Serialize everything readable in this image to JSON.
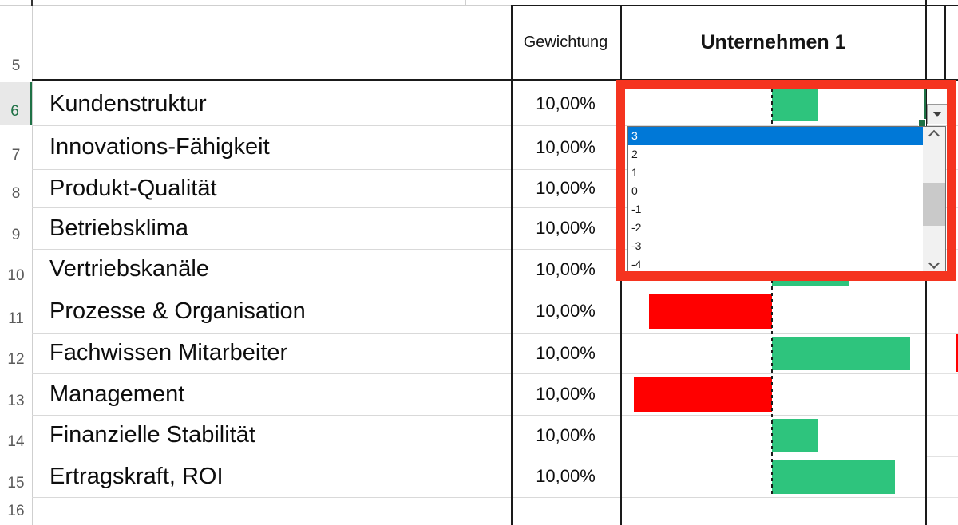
{
  "header": {
    "weight": "Gewichtung",
    "company": "Unternehmen 1"
  },
  "row_numbers": [
    "5",
    "6",
    "7",
    "8",
    "9",
    "10",
    "11",
    "12",
    "13",
    "14",
    "15",
    "16"
  ],
  "active_row": "6",
  "rows": [
    {
      "num": "6",
      "label": "Kundenstruktur",
      "weight": "10,00%",
      "value": 3
    },
    {
      "num": "7",
      "label": "Innovations-Fähigkeit",
      "weight": "10,00%",
      "value": null
    },
    {
      "num": "8",
      "label": "Produkt-Qualität",
      "weight": "10,00%",
      "value": null
    },
    {
      "num": "9",
      "label": "Betriebsklima",
      "weight": "10,00%",
      "value": null
    },
    {
      "num": "10",
      "label": "Vertriebskanäle",
      "weight": "10,00%",
      "value": 5
    },
    {
      "num": "11",
      "label": "Prozesse & Organisation",
      "weight": "10,00%",
      "value": -8
    },
    {
      "num": "12",
      "label": "Fachwissen Mitarbeiter",
      "weight": "10,00%",
      "value": 9
    },
    {
      "num": "13",
      "label": "Management",
      "weight": "10,00%",
      "value": -9
    },
    {
      "num": "14",
      "label": "Finanzielle Stabilität",
      "weight": "10,00%",
      "value": 3
    },
    {
      "num": "15",
      "label": "Ertragskraft, ROI",
      "weight": "10,00%",
      "value": 8
    }
  ],
  "dropdown": {
    "items": [
      "3",
      "2",
      "1",
      "0",
      "-1",
      "-2",
      "-3",
      "-4"
    ],
    "selected_index": 0,
    "selected_value": "3"
  },
  "adjacent_column_bar": {
    "row_num": "12",
    "direction": "negative"
  },
  "icons": {
    "dropdown-arrow-icon": "filled down triangle",
    "scroll-up-icon": "chevron up",
    "scroll-down-icon": "chevron down"
  },
  "colors": {
    "bar_positive": "#2EC47D",
    "bar_negative": "#FF0000",
    "selection_blue": "#0078D7",
    "annotation_red": "#F5341F",
    "active_green": "#1E7145"
  },
  "chart_data": {
    "type": "bar",
    "orientation": "horizontal",
    "title": "Unternehmen 1",
    "categories": [
      "Kundenstruktur",
      "Innovations-Fähigkeit",
      "Produkt-Qualität",
      "Betriebsklima",
      "Vertriebskanäle",
      "Prozesse & Organisation",
      "Fachwissen Mitarbeiter",
      "Management",
      "Finanzielle Stabilität",
      "Ertragskraft, ROI"
    ],
    "values": [
      3,
      null,
      null,
      null,
      5,
      -8,
      9,
      -9,
      3,
      8
    ],
    "weights": [
      "10,00%",
      "10,00%",
      "10,00%",
      "10,00%",
      "10,00%",
      "10,00%",
      "10,00%",
      "10,00%",
      "10,00%",
      "10,00%"
    ],
    "xlim": [
      -10,
      10
    ],
    "note": "values for rows 7-9 hidden behind open dropdown; positive bars green, negative bars red, dashed zero axis at column center"
  }
}
